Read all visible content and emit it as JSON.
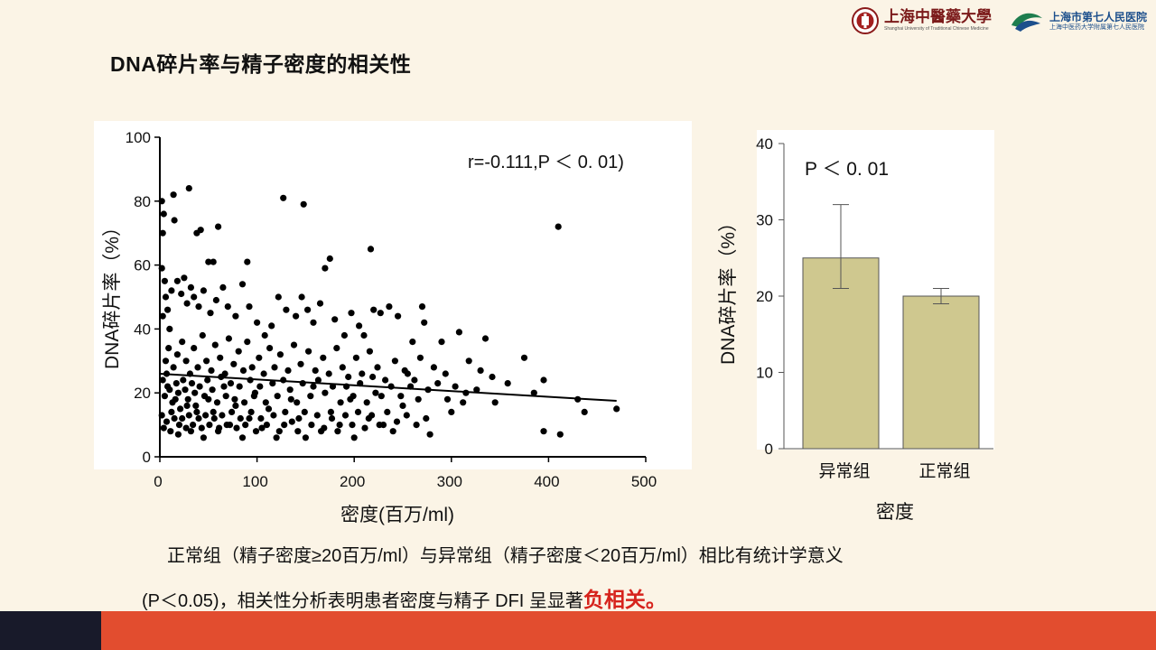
{
  "slide": {
    "title": "DNA碎片率与精子密度的相关性",
    "caption_line1": "正常组（精子密度≥20百万/ml）与异常组（精子密度＜20百万/ml）相比有统计学意义",
    "caption_line2_prefix": "(P＜0.05)，相关性分析表明患者密度与精子 DFI 呈显著",
    "caption_line2_highlight": "负相关。",
    "highlight_color": "#d6231c",
    "accent_color": "#e24d2f",
    "dark_color": "#181a2a"
  },
  "logos": {
    "university_name": "上海中醫藥大學",
    "university_sub": "Shanghai University of Traditional Chinese Medicine",
    "university_icon": "university-seal-icon",
    "hospital_name": "上海市第七人民医院",
    "hospital_sub": "上海中医药大学附属第七人民医院",
    "hospital_icon": "hospital-logo-icon"
  },
  "chart_data": [
    {
      "type": "scatter",
      "xlabel": "密度(百万/ml)",
      "ylabel": "DNA碎片率（%）",
      "annotation": "r=-0.111,P ＜ 0. 01)",
      "xlim": [
        0,
        500
      ],
      "ylim": [
        0,
        100
      ],
      "xticks": [
        0,
        100,
        200,
        300,
        400,
        500
      ],
      "yticks": [
        0,
        20,
        40,
        60,
        80,
        100
      ],
      "trendline": [
        [
          0,
          26
        ],
        [
          470,
          17.5
        ]
      ],
      "highlighted_points": [
        [
          2,
          80
        ],
        [
          4,
          76
        ],
        [
          3,
          70
        ],
        [
          2,
          59
        ],
        [
          14,
          82
        ],
        [
          15,
          74
        ],
        [
          30,
          84
        ],
        [
          38,
          70
        ],
        [
          42,
          71
        ],
        [
          60,
          72
        ],
        [
          50,
          61
        ],
        [
          55,
          61
        ],
        [
          90,
          61
        ],
        [
          127,
          81
        ],
        [
          148,
          79
        ],
        [
          170,
          59
        ],
        [
          175,
          62
        ],
        [
          217,
          65
        ],
        [
          410,
          72
        ]
      ],
      "points": [
        [
          5,
          55
        ],
        [
          6,
          50
        ],
        [
          8,
          46
        ],
        [
          3,
          44
        ],
        [
          10,
          40
        ],
        [
          12,
          52
        ],
        [
          18,
          55
        ],
        [
          22,
          51
        ],
        [
          25,
          56
        ],
        [
          28,
          48
        ],
        [
          32,
          53
        ],
        [
          35,
          50
        ],
        [
          40,
          47
        ],
        [
          45,
          52
        ],
        [
          52,
          45
        ],
        [
          58,
          49
        ],
        [
          65,
          53
        ],
        [
          70,
          47
        ],
        [
          78,
          44
        ],
        [
          85,
          54
        ],
        [
          92,
          47
        ],
        [
          100,
          42
        ],
        [
          108,
          38
        ],
        [
          115,
          41
        ],
        [
          122,
          50
        ],
        [
          130,
          46
        ],
        [
          140,
          44
        ],
        [
          146,
          50
        ],
        [
          152,
          46
        ],
        [
          158,
          42
        ],
        [
          165,
          48
        ],
        [
          180,
          43
        ],
        [
          190,
          38
        ],
        [
          197,
          45
        ],
        [
          205,
          41
        ],
        [
          210,
          38
        ],
        [
          220,
          46
        ],
        [
          227,
          45
        ],
        [
          236,
          47
        ],
        [
          245,
          44
        ],
        [
          260,
          36
        ],
        [
          270,
          47
        ],
        [
          272,
          42
        ],
        [
          290,
          36
        ],
        [
          308,
          39
        ],
        [
          335,
          37
        ],
        [
          375,
          31
        ],
        [
          395,
          24
        ],
        [
          342,
          25
        ],
        [
          345,
          17
        ],
        [
          385,
          20
        ],
        [
          395,
          8
        ],
        [
          412,
          7
        ],
        [
          430,
          18
        ],
        [
          437,
          14
        ],
        [
          470,
          15
        ],
        [
          315,
          20
        ],
        [
          300,
          14
        ],
        [
          286,
          23
        ],
        [
          278,
          7
        ],
        [
          255,
          26
        ],
        [
          250,
          16
        ],
        [
          240,
          8
        ],
        [
          230,
          10
        ],
        [
          222,
          20
        ],
        [
          215,
          12
        ],
        [
          200,
          6
        ],
        [
          196,
          18
        ],
        [
          185,
          10
        ],
        [
          176,
          14
        ],
        [
          166,
          8
        ],
        [
          158,
          22
        ],
        [
          150,
          6
        ],
        [
          143,
          12
        ],
        [
          135,
          18
        ],
        [
          128,
          10
        ],
        [
          120,
          6
        ],
        [
          112,
          15
        ],
        [
          105,
          9
        ],
        [
          98,
          20
        ],
        [
          92,
          12
        ],
        [
          85,
          6
        ],
        [
          78,
          16
        ],
        [
          72,
          10
        ],
        [
          66,
          22
        ],
        [
          60,
          8
        ],
        [
          55,
          14
        ],
        [
          50,
          18
        ],
        [
          45,
          6
        ],
        [
          40,
          12
        ],
        [
          36,
          20
        ],
        [
          32,
          8
        ],
        [
          28,
          16
        ],
        [
          24,
          24
        ],
        [
          20,
          10
        ],
        [
          16,
          18
        ],
        [
          12,
          14
        ],
        [
          8,
          22
        ],
        [
          6,
          30
        ],
        [
          9,
          34
        ],
        [
          14,
          28
        ],
        [
          18,
          32
        ],
        [
          23,
          36
        ],
        [
          27,
          30
        ],
        [
          31,
          26
        ],
        [
          35,
          34
        ],
        [
          39,
          28
        ],
        [
          44,
          38
        ],
        [
          48,
          30
        ],
        [
          53,
          27
        ],
        [
          57,
          35
        ],
        [
          62,
          31
        ],
        [
          67,
          26
        ],
        [
          71,
          37
        ],
        [
          76,
          29
        ],
        [
          81,
          33
        ],
        [
          86,
          27
        ],
        [
          90,
          36
        ],
        [
          95,
          28
        ],
        [
          102,
          31
        ],
        [
          107,
          26
        ],
        [
          113,
          34
        ],
        [
          118,
          28
        ],
        [
          124,
          32
        ],
        [
          132,
          27
        ],
        [
          138,
          35
        ],
        [
          145,
          29
        ],
        [
          153,
          33
        ],
        [
          160,
          27
        ],
        [
          168,
          31
        ],
        [
          174,
          26
        ],
        [
          182,
          34
        ],
        [
          188,
          28
        ],
        [
          194,
          25
        ],
        [
          202,
          31
        ],
        [
          208,
          26
        ],
        [
          216,
          33
        ],
        [
          224,
          28
        ],
        [
          232,
          24
        ],
        [
          242,
          30
        ],
        [
          252,
          27
        ],
        [
          262,
          24
        ],
        [
          268,
          31
        ],
        [
          282,
          28
        ],
        [
          294,
          26
        ],
        [
          304,
          22
        ],
        [
          318,
          30
        ],
        [
          330,
          27
        ],
        [
          358,
          23
        ],
        [
          3,
          24
        ],
        [
          5,
          19
        ],
        [
          7,
          26
        ],
        [
          10,
          21
        ],
        [
          13,
          17
        ],
        [
          17,
          23
        ],
        [
          19,
          20
        ],
        [
          21,
          15
        ],
        [
          26,
          21
        ],
        [
          29,
          18
        ],
        [
          33,
          23
        ],
        [
          37,
          16
        ],
        [
          41,
          22
        ],
        [
          46,
          19
        ],
        [
          49,
          24
        ],
        [
          54,
          21
        ],
        [
          59,
          17
        ],
        [
          63,
          25
        ],
        [
          68,
          19
        ],
        [
          73,
          23
        ],
        [
          77,
          18
        ],
        [
          82,
          22
        ],
        [
          87,
          17
        ],
        [
          93,
          24
        ],
        [
          97,
          19
        ],
        [
          103,
          22
        ],
        [
          109,
          17
        ],
        [
          116,
          23
        ],
        [
          121,
          19
        ],
        [
          127,
          24
        ],
        [
          134,
          21
        ],
        [
          141,
          17
        ],
        [
          147,
          23
        ],
        [
          155,
          19
        ],
        [
          163,
          24
        ],
        [
          170,
          20
        ],
        [
          178,
          22
        ],
        [
          186,
          17
        ],
        [
          192,
          22
        ],
        [
          199,
          19
        ],
        [
          206,
          23
        ],
        [
          213,
          17
        ],
        [
          219,
          25
        ],
        [
          228,
          19
        ],
        [
          238,
          22
        ],
        [
          248,
          19
        ],
        [
          258,
          22
        ],
        [
          266,
          18
        ],
        [
          276,
          21
        ],
        [
          296,
          18
        ],
        [
          312,
          17
        ],
        [
          326,
          21
        ],
        [
          2,
          13
        ],
        [
          4,
          9
        ],
        [
          7,
          11
        ],
        [
          11,
          8
        ],
        [
          15,
          12
        ],
        [
          19,
          7
        ],
        [
          23,
          12
        ],
        [
          27,
          9
        ],
        [
          30,
          13
        ],
        [
          34,
          10
        ],
        [
          38,
          14
        ],
        [
          43,
          9
        ],
        [
          47,
          13
        ],
        [
          51,
          10
        ],
        [
          56,
          12
        ],
        [
          61,
          9
        ],
        [
          64,
          13
        ],
        [
          69,
          10
        ],
        [
          74,
          14
        ],
        [
          79,
          9
        ],
        [
          83,
          12
        ],
        [
          88,
          10
        ],
        [
          94,
          14
        ],
        [
          99,
          8
        ],
        [
          104,
          12
        ],
        [
          110,
          10
        ],
        [
          117,
          13
        ],
        [
          123,
          8
        ],
        [
          129,
          14
        ],
        [
          136,
          11
        ],
        [
          142,
          8
        ],
        [
          149,
          14
        ],
        [
          156,
          10
        ],
        [
          162,
          13
        ],
        [
          169,
          9
        ],
        [
          177,
          12
        ],
        [
          183,
          8
        ],
        [
          191,
          13
        ],
        [
          198,
          10
        ],
        [
          204,
          14
        ],
        [
          211,
          9
        ],
        [
          218,
          13
        ],
        [
          226,
          10
        ],
        [
          234,
          14
        ],
        [
          244,
          11
        ],
        [
          254,
          13
        ],
        [
          264,
          10
        ],
        [
          274,
          12
        ]
      ]
    },
    {
      "type": "bar",
      "categories": [
        "异常组",
        "正常组"
      ],
      "values": [
        25,
        20
      ],
      "error_low": [
        21,
        19
      ],
      "error_high": [
        32,
        21
      ],
      "xlabel": "密度",
      "ylabel": "DNA碎片率（%）",
      "annotation": "P ＜ 0. 01",
      "ylim": [
        0,
        40
      ],
      "yticks": [
        0,
        10,
        20,
        30,
        40
      ],
      "bar_color": "#cfc88f",
      "bar_edge_color": "#555555"
    }
  ]
}
